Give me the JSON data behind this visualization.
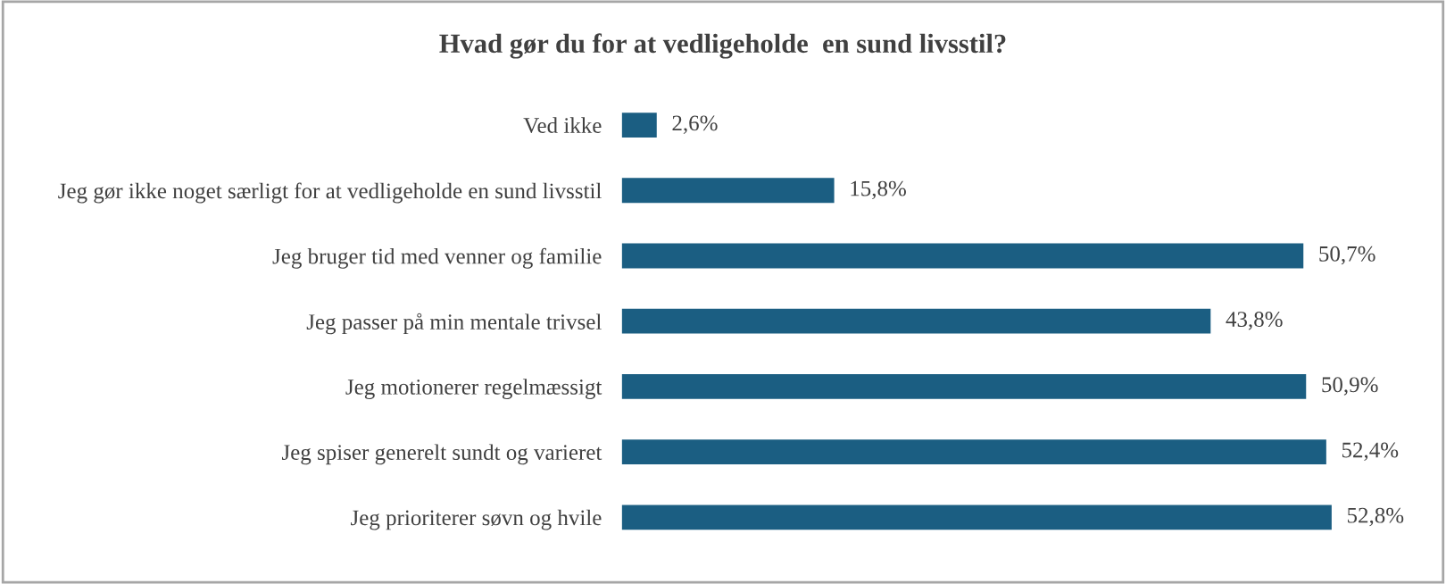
{
  "chart_data": {
    "type": "bar",
    "orientation": "horizontal",
    "title": "Hvad gør du for at vedligeholde  en sund livsstil?",
    "categories": [
      "Ved ikke",
      "Jeg gør ikke noget særligt for at vedligeholde en sund livsstil",
      "Jeg bruger tid med venner og familie",
      "Jeg passer på min mentale trivsel",
      "Jeg motionerer regelmæssigt",
      "Jeg spiser generelt sundt og varieret",
      "Jeg prioriterer søvn og hvile"
    ],
    "values": [
      2.6,
      15.8,
      50.7,
      43.8,
      50.9,
      52.4,
      52.8
    ],
    "value_labels": [
      "2,6%",
      "15,8%",
      "50,7%",
      "43,8%",
      "50,9%",
      "52,4%",
      "52,8%"
    ],
    "color": "#1b5e82",
    "grid": false,
    "legend": false,
    "tick_labels": "y"
  }
}
